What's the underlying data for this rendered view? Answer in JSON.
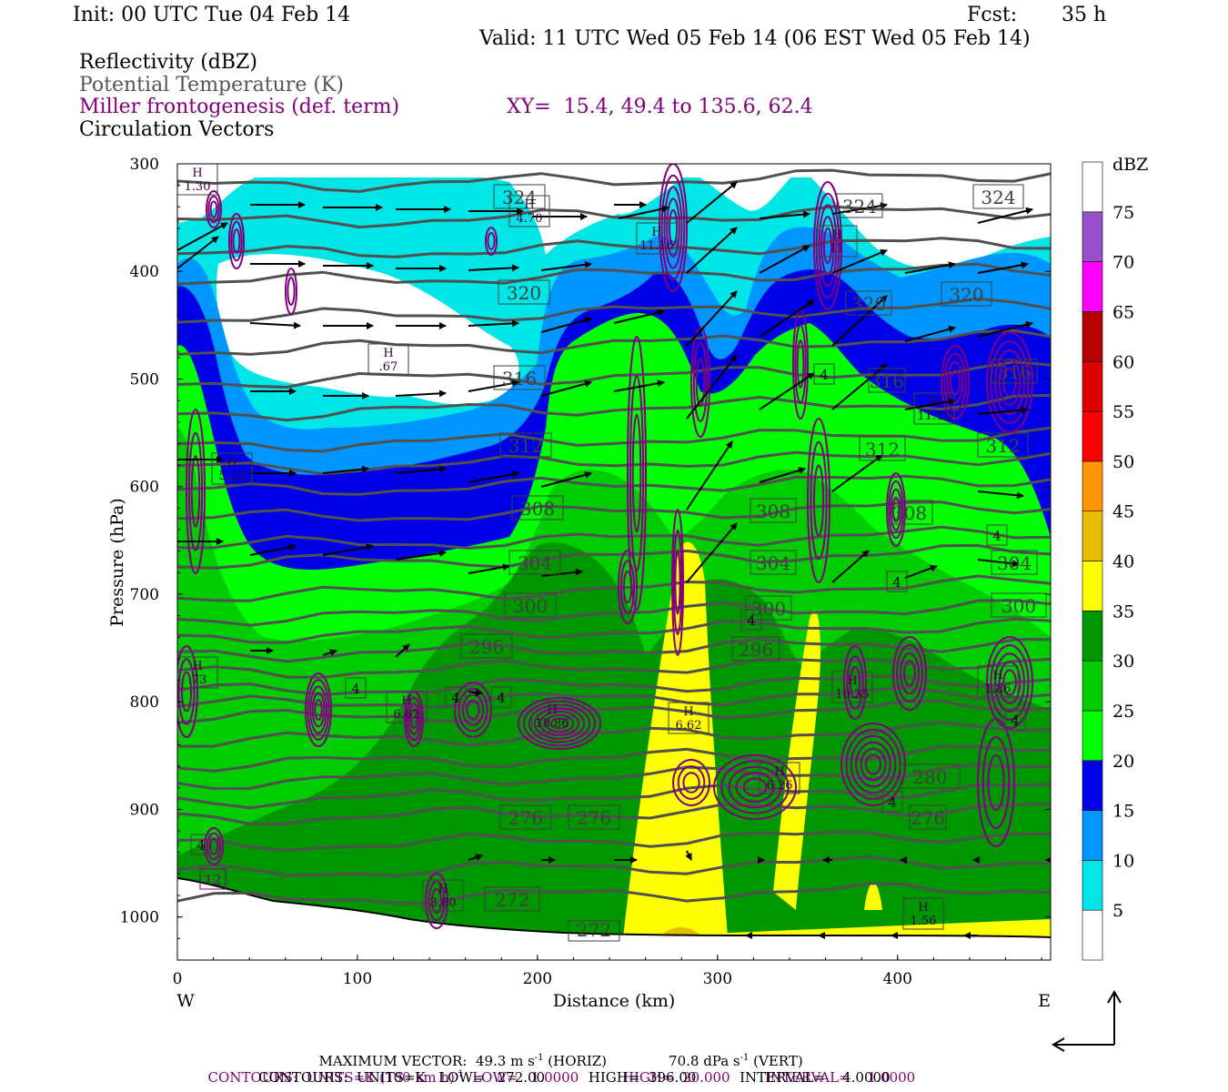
{
  "header": {
    "init": "Init: 00 UTC Tue 04 Feb 14",
    "fcst_label": "Fcst:",
    "fcst_value": "35 h",
    "valid": "Valid: 11 UTC Wed 05 Feb 14 (06 EST Wed 05 Feb 14)"
  },
  "legend_titles": [
    "Reflectivity (dBZ)",
    "Potential Temperature (K)",
    "Miller frontogenesis (def. term)",
    "Circulation Vectors"
  ],
  "xy_text": "XY=  15.4, 49.4 to 135.6, 62.4",
  "chart_data": {
    "type": "heatmap",
    "xlabel": "Distance (km)",
    "ylabel": "Pressure (hPa)",
    "xlim": [
      0,
      485
    ],
    "ylim": [
      1040,
      300
    ],
    "x_ticks": [
      "0",
      "100",
      "200",
      "300",
      "400"
    ],
    "y_ticks": [
      "300",
      "400",
      "500",
      "600",
      "700",
      "800",
      "900",
      "1000"
    ],
    "x_end_labels": {
      "left": "W",
      "right": "E"
    },
    "colorbar": {
      "title": "dBZ",
      "levels": [
        "5",
        "10",
        "15",
        "20",
        "25",
        "30",
        "35",
        "40",
        "45",
        "50",
        "55",
        "60",
        "65",
        "70",
        "75"
      ],
      "colors": [
        "#ffffff",
        "#00e6e6",
        "#0096ff",
        "#0000e6",
        "#00ff00",
        "#00cc00",
        "#009600",
        "#ffff00",
        "#e6be00",
        "#ff9600",
        "#ff0000",
        "#dc0000",
        "#b40000",
        "#ff00ff",
        "#9650c8",
        "#ffffff"
      ]
    },
    "theta_contours": {
      "levels": [
        272,
        276,
        280,
        284,
        288,
        292,
        296,
        300,
        304,
        308,
        312,
        316,
        320,
        324
      ],
      "labels": [
        "272",
        "276",
        "276",
        "296",
        "300",
        "300",
        "304",
        "304",
        "304",
        "308",
        "308",
        "308",
        "312",
        "312",
        "312",
        "316",
        "316",
        "316",
        "320",
        "320",
        "320",
        "324",
        "324",
        "324"
      ],
      "shown_labels": [
        "272",
        "276",
        "276",
        "280",
        "296",
        "296",
        "300",
        "300",
        "300",
        "304",
        "304",
        "304",
        "308",
        "308",
        "308",
        "312",
        "312",
        "312",
        "316",
        "316",
        "316",
        "320",
        "320",
        "320",
        "324",
        "324",
        "324",
        "272"
      ]
    },
    "frontogenesis_maxima": [
      {
        "label": "H",
        "value": "1.30"
      },
      {
        "label": "H",
        "value": "4.70"
      },
      {
        "label": "H",
        "value": "11.16"
      },
      {
        "label": "H",
        "value": "11"
      },
      {
        "label": "H",
        "value": ".67"
      },
      {
        "label": "H",
        "value": "11.12"
      },
      {
        "label": "H",
        "value": "5.23"
      },
      {
        "label": "H",
        "value": ".73"
      },
      {
        "label": "H",
        "value": "6.62"
      },
      {
        "label": "H",
        "value": "18.86"
      },
      {
        "label": "H",
        "value": "6.62"
      },
      {
        "label": "H",
        "value": "6.26"
      },
      {
        "label": "H",
        "value": "10.35"
      },
      {
        "label": "H",
        "value": "1.86"
      },
      {
        "label": "H",
        "value": "3.80"
      },
      {
        "label": "H",
        "value": "1.56"
      }
    ],
    "contour_4_labels": [
      "4",
      "4",
      "4",
      "4",
      "4",
      "4",
      "4",
      "4",
      "4",
      "4"
    ],
    "misc_labels": [
      "12"
    ],
    "max_vector": {
      "horiz": "49.3",
      "vert": "70.8"
    }
  },
  "footer": {
    "line1_a": "MAXIMUM VECTOR:  49.3 m s",
    "line1_sup": "-1",
    "line1_b": " (HORIZ)",
    "line1_c": "70.8 dPa s",
    "line1_sup2": "-1",
    "line1_d": " (VERT)",
    "line2": "CONTOURS:  UNITS=K (100 km h)",
    "line2_sup": "-1",
    "line2_rest": "  LOW=   1.0000          HIGH=  20.000        INTERVAL=    1.0000",
    "line3": "CONTOURS:  UNITS=K   LOW=   272.00          HIGH=  396.00          INTERVAL=    4.0000"
  }
}
